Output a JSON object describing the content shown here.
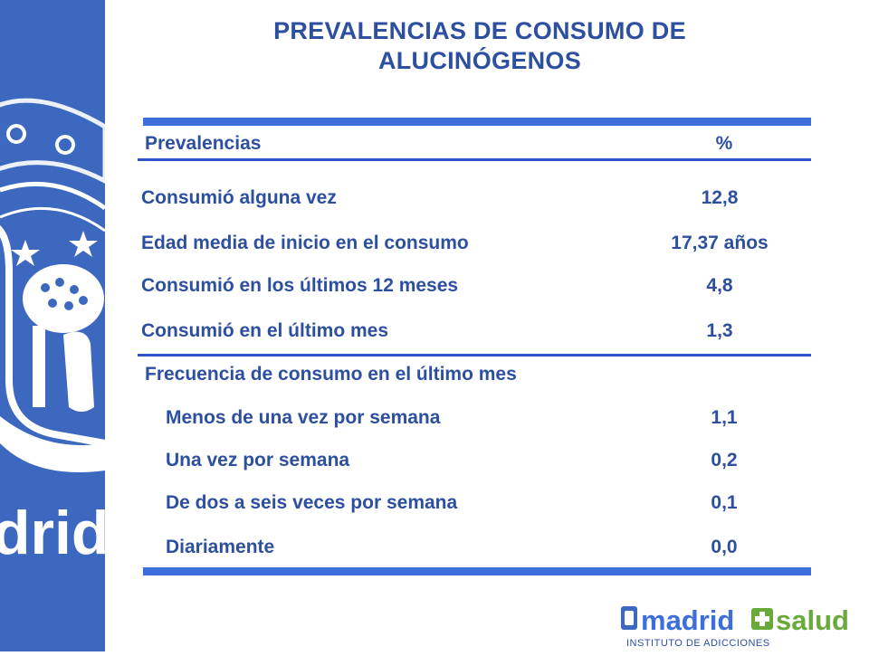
{
  "title": {
    "line1": "PREVALENCIAS DE CONSUMO DE",
    "line2": "ALUCINÓGENOS"
  },
  "table": {
    "header": {
      "label": "Prevalencias",
      "value": "%"
    },
    "rows": [
      {
        "label": "Consumió alguna vez",
        "value": "12,8"
      },
      {
        "label": "Edad media de inicio en el consumo",
        "value": "17,37 años"
      },
      {
        "label": "Consumió en los últimos 12 meses",
        "value": "4,8"
      },
      {
        "label": "Consumió en el último mes",
        "value": "1,3"
      }
    ],
    "section_label": "Frecuencia de consumo en el último mes",
    "frequency_rows": [
      {
        "label": "Menos de una vez por semana",
        "value": "1,1"
      },
      {
        "label": "Una vez por semana",
        "value": "0,2"
      },
      {
        "label": "De dos a seis veces por semana",
        "value": "0,1"
      },
      {
        "label": "Diariamente",
        "value": "0,0"
      }
    ]
  },
  "sidebar": {
    "watermark_text": "drid"
  },
  "logo": {
    "word1": "madrid",
    "word2": "salud",
    "subtitle": "INSTITUTO DE ADICCIONES"
  },
  "colors": {
    "accent": "#3d6fdc",
    "text": "#2c4fa0",
    "sidebar": "#3d68c0",
    "logo_green": "#6aaa3a"
  }
}
